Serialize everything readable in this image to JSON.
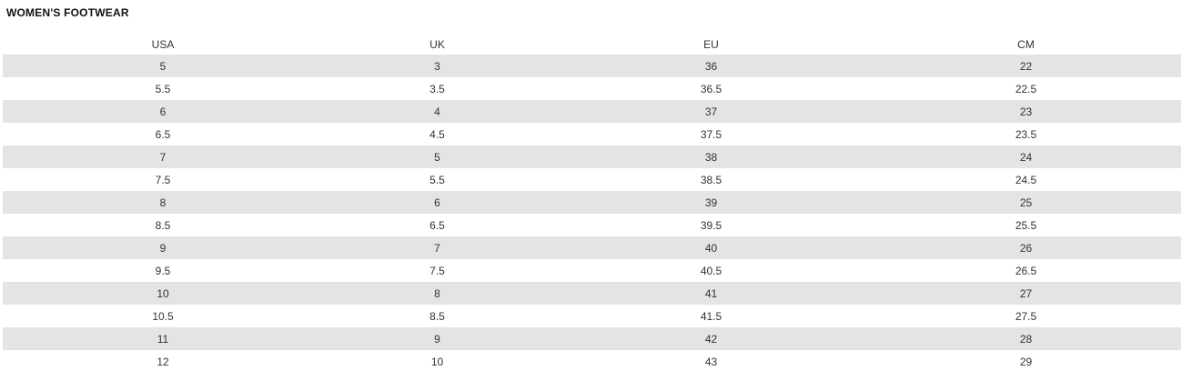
{
  "title": "WOMEN'S FOOTWEAR",
  "table": {
    "headers": [
      "USA",
      "UK",
      "EU",
      "CM"
    ],
    "rows": [
      [
        "5",
        "3",
        "36",
        "22"
      ],
      [
        "5.5",
        "3.5",
        "36.5",
        "22.5"
      ],
      [
        "6",
        "4",
        "37",
        "23"
      ],
      [
        "6.5",
        "4.5",
        "37.5",
        "23.5"
      ],
      [
        "7",
        "5",
        "38",
        "24"
      ],
      [
        "7.5",
        "5.5",
        "38.5",
        "24.5"
      ],
      [
        "8",
        "6",
        "39",
        "25"
      ],
      [
        "8.5",
        "6.5",
        "39.5",
        "25.5"
      ],
      [
        "9",
        "7",
        "40",
        "26"
      ],
      [
        "9.5",
        "7.5",
        "40.5",
        "26.5"
      ],
      [
        "10",
        "8",
        "41",
        "27"
      ],
      [
        "10.5",
        "8.5",
        "41.5",
        "27.5"
      ],
      [
        "11",
        "9",
        "42",
        "28"
      ],
      [
        "12",
        "10",
        "43",
        "29"
      ]
    ]
  },
  "colors": {
    "stripe": "#e4e4e4",
    "text": "#333333",
    "background": "#ffffff"
  }
}
